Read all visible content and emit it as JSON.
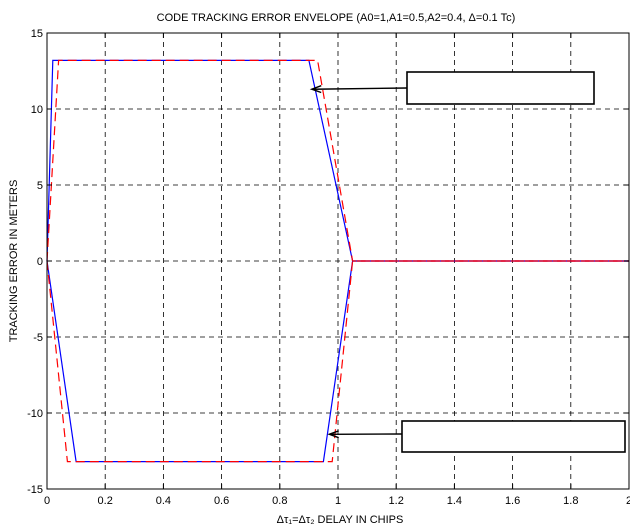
{
  "chart_data": {
    "type": "line",
    "title": "CODE TRACKING ERROR ENVELOPE (A0=1,A1=0.5,A2=0.4, Δ=0.1 Tc)",
    "xlabel": "Δτ₁=Δτ₂ DELAY IN CHIPS",
    "ylabel": "TRACKING ERROR IN METERS",
    "xlim": [
      0,
      2
    ],
    "ylim": [
      -15,
      15
    ],
    "x_ticks": [
      0,
      0.2,
      0.4,
      0.6,
      0.8,
      1,
      1.2,
      1.4,
      1.6,
      1.8,
      2
    ],
    "x_tick_labels": [
      "0",
      "0.2",
      "0.4",
      "0.6",
      "0.8",
      "1",
      "1.2",
      "1.4",
      "1.6",
      "1.8",
      "2"
    ],
    "y_ticks": [
      -15,
      -10,
      -5,
      0,
      5,
      10,
      15
    ],
    "y_tick_labels": [
      "-15",
      "-10",
      "-5",
      "0",
      "5",
      "10",
      "15"
    ],
    "grid": true,
    "series": [
      {
        "color": "#0000ff",
        "dash": "solid",
        "upper": {
          "x": [
            0,
            0.02,
            0.9,
            1.05,
            2
          ],
          "y": [
            0,
            13.2,
            13.2,
            0,
            0
          ]
        },
        "lower": {
          "x": [
            0,
            0.1,
            0.95,
            1.05,
            2
          ],
          "y": [
            0,
            -13.2,
            -13.2,
            0,
            0
          ]
        }
      },
      {
        "color": "#ff0000",
        "dash": "dashed",
        "upper": {
          "x": [
            0,
            0.04,
            0.93,
            1.05,
            2
          ],
          "y": [
            0,
            13.2,
            13.2,
            0,
            0
          ]
        },
        "lower": {
          "x": [
            0,
            0.07,
            0.98,
            1.05,
            2
          ],
          "y": [
            0,
            -13.2,
            -13.2,
            0,
            0
          ]
        }
      }
    ],
    "annotations": [
      {
        "type": "arrow-box",
        "text": "",
        "target": [
          0.91,
          11.3
        ]
      },
      {
        "type": "arrow-box",
        "text": "",
        "target": [
          0.97,
          -11.4
        ]
      }
    ]
  }
}
